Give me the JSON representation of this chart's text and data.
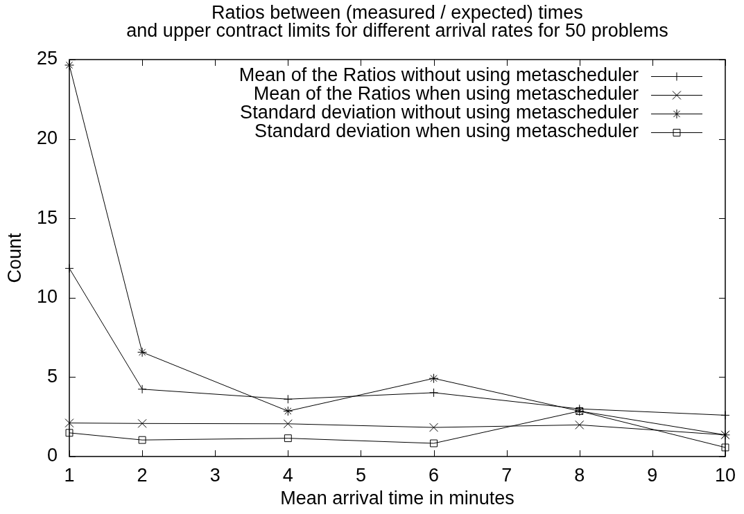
{
  "chart_data": {
    "type": "line",
    "title": "Ratios between (measured / expected) times\nand upper contract limits for different arrival rates for 50 problems",
    "xlabel": "Mean arrival time in minutes",
    "ylabel": "Count",
    "x": [
      1,
      2,
      4,
      6,
      8,
      10
    ],
    "series": [
      {
        "name": "Mean of the Ratios without using metascheduler",
        "color": "#000000",
        "marker": "plus",
        "values": [
          11.85,
          4.24,
          3.61,
          4.02,
          3.0,
          2.6
        ]
      },
      {
        "name": "Mean of the Ratios when using metascheduler",
        "color": "#000000",
        "marker": "x",
        "values": [
          2.11,
          2.08,
          2.06,
          1.83,
          1.99,
          1.36
        ]
      },
      {
        "name": "Standard deviation without using metascheduler",
        "color": "#000000",
        "marker": "cross",
        "values": [
          24.65,
          6.57,
          2.86,
          4.92,
          2.86,
          1.36
        ]
      },
      {
        "name": "Standard deviation when using metascheduler",
        "color": "#000000",
        "marker": "square",
        "values": [
          1.49,
          1.04,
          1.15,
          0.83,
          2.86,
          0.57
        ]
      }
    ],
    "xlim": [
      1,
      10
    ],
    "xticks": [
      1,
      2,
      3,
      4,
      5,
      6,
      7,
      8,
      9,
      10
    ],
    "ylim": [
      0,
      25
    ],
    "yticks": [
      0,
      5,
      10,
      15,
      20,
      25
    ],
    "grid": false,
    "legend": "top right",
    "line_style": "solid"
  }
}
